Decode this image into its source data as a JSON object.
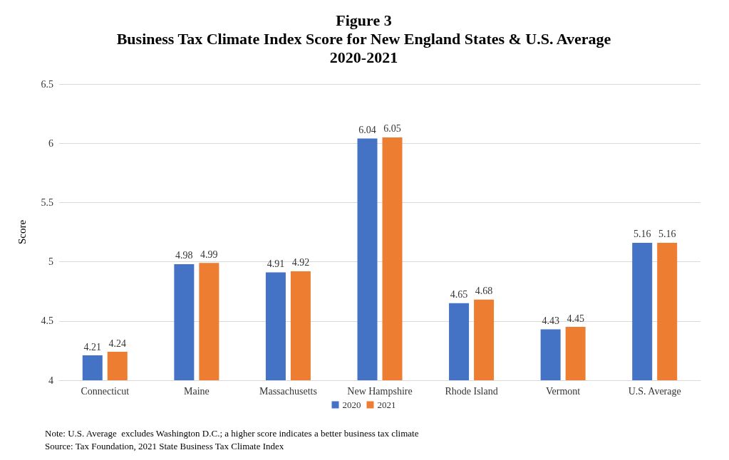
{
  "chart_data": {
    "type": "bar",
    "title": "Figure 3",
    "subtitle": "Business Tax Climate Index Score for New England States & U.S. Average\n2020-2021",
    "ylabel": "Score",
    "categories": [
      "Connecticut",
      "Maine",
      "Massachusetts",
      "New Hampshire",
      "Rhode Island",
      "Vermont",
      "U.S. Average"
    ],
    "series": [
      {
        "name": "2020",
        "color": "#4472c4",
        "values": [
          4.21,
          4.98,
          4.91,
          6.04,
          4.65,
          4.43,
          5.16
        ]
      },
      {
        "name": "2021",
        "color": "#ed7d31",
        "values": [
          4.24,
          4.99,
          4.92,
          6.05,
          4.68,
          4.45,
          5.16
        ]
      }
    ],
    "ylim": [
      4,
      6.5
    ],
    "yticks": [
      4,
      4.5,
      5,
      5.5,
      6,
      6.5
    ],
    "grid": "y",
    "legend": "bottom",
    "data_labels": true,
    "annotations": [
      "Note: U.S. Average  excludes Washington D.C.; a higher score indicates a better business tax climate",
      "Source: Tax Foundation, 2021 State Business Tax Climate Index"
    ]
  }
}
